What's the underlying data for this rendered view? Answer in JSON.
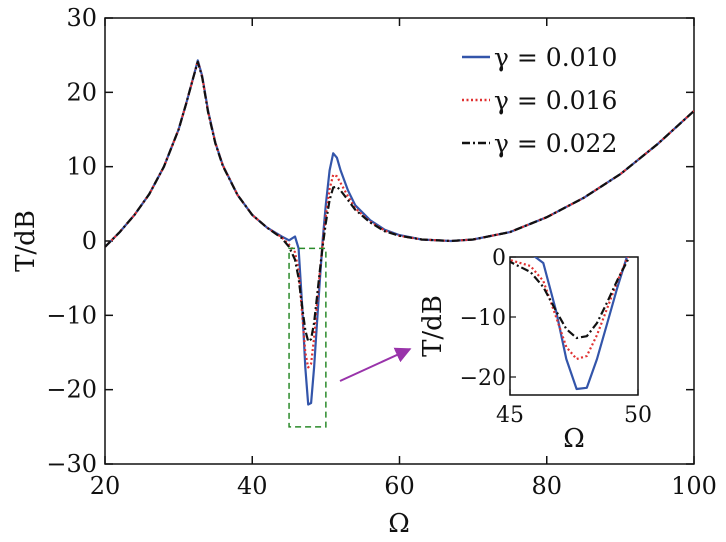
{
  "chart_data": {
    "type": "line",
    "xlabel": "Ω",
    "ylabel": "T/dB",
    "xlim": [
      20,
      100
    ],
    "ylim": [
      -30,
      30
    ],
    "xticks": [
      20,
      40,
      60,
      80,
      100
    ],
    "yticks": [
      -30,
      -20,
      -10,
      0,
      10,
      20,
      30
    ],
    "xtick_labels": [
      "20",
      "40",
      "60",
      "80",
      "100"
    ],
    "ytick_labels": [
      "−30",
      "−20",
      "−10",
      "0",
      "10",
      "20",
      "30"
    ],
    "grid": false,
    "legend_position": "top-right",
    "series": [
      {
        "name": "γ = 0.010",
        "color": "#3355aa",
        "style": "solid",
        "x": [
          20,
          22,
          24,
          26,
          28,
          30,
          31,
          32,
          32.6,
          33.2,
          34,
          35,
          36,
          38,
          40,
          42,
          44,
          45,
          45.8,
          46.3,
          46.8,
          47.2,
          47.6,
          48,
          48.4,
          48.8,
          49.2,
          49.6,
          50,
          50.5,
          51,
          51.5,
          52,
          53,
          54,
          56,
          58,
          60,
          63,
          67,
          70,
          75,
          80,
          85,
          90,
          95,
          100
        ],
        "y": [
          -0.8,
          1.2,
          3.5,
          6.3,
          10.0,
          15.0,
          18.4,
          22.0,
          24.3,
          22.2,
          17.5,
          13.2,
          10.2,
          6.2,
          3.5,
          1.8,
          0.6,
          0.1,
          0.6,
          -1.0,
          -9.0,
          -17.0,
          -22.0,
          -21.8,
          -17.0,
          -11.0,
          -5.0,
          0.5,
          5.0,
          9.5,
          11.8,
          11.2,
          9.5,
          6.8,
          4.8,
          2.8,
          1.5,
          0.8,
          0.2,
          0.0,
          0.2,
          1.2,
          3.2,
          5.8,
          9.0,
          13.0,
          17.5
        ]
      },
      {
        "name": "γ = 0.016",
        "color": "#e03030",
        "style": "dotted",
        "x": [
          20,
          22,
          24,
          26,
          28,
          30,
          31,
          32,
          32.6,
          33.2,
          34,
          35,
          36,
          38,
          40,
          42,
          44,
          45,
          45.8,
          46.3,
          46.8,
          47.2,
          47.6,
          48,
          48.4,
          48.8,
          49.2,
          49.6,
          50,
          50.5,
          51,
          51.5,
          52,
          53,
          54,
          56,
          58,
          60,
          63,
          67,
          70,
          75,
          80,
          85,
          90,
          95,
          100
        ],
        "y": [
          -0.8,
          1.2,
          3.5,
          6.3,
          10.0,
          15.0,
          18.4,
          22.0,
          24.2,
          22.1,
          17.4,
          13.2,
          10.2,
          6.2,
          3.5,
          1.8,
          0.5,
          -0.5,
          -1.5,
          -4.0,
          -10.0,
          -15.0,
          -17.0,
          -16.5,
          -13.0,
          -8.5,
          -4.0,
          0.0,
          3.5,
          7.0,
          8.9,
          8.7,
          7.8,
          6.0,
          4.4,
          2.6,
          1.4,
          0.7,
          0.2,
          0.0,
          0.2,
          1.2,
          3.2,
          5.8,
          9.0,
          13.0,
          17.5
        ]
      },
      {
        "name": "γ = 0.022",
        "color": "#111111",
        "style": "dashdot",
        "x": [
          20,
          22,
          24,
          26,
          28,
          30,
          31,
          32,
          32.6,
          33.2,
          34,
          35,
          36,
          38,
          40,
          42,
          44,
          45,
          45.8,
          46.3,
          46.8,
          47.2,
          47.6,
          48,
          48.4,
          48.8,
          49.2,
          49.6,
          50,
          50.5,
          51,
          51.5,
          52,
          53,
          54,
          56,
          58,
          60,
          63,
          67,
          70,
          75,
          80,
          85,
          90,
          95,
          100
        ],
        "y": [
          -0.8,
          1.2,
          3.5,
          6.3,
          10.0,
          15.0,
          18.4,
          22.0,
          24.1,
          22.0,
          17.3,
          13.1,
          10.1,
          6.2,
          3.5,
          1.8,
          0.4,
          -0.8,
          -2.5,
          -5.0,
          -9.0,
          -12.0,
          -13.5,
          -13.2,
          -11.0,
          -7.5,
          -3.8,
          -0.5,
          2.5,
          5.5,
          7.2,
          7.3,
          6.8,
          5.5,
          4.2,
          2.5,
          1.3,
          0.7,
          0.2,
          0.0,
          0.2,
          1.2,
          3.2,
          5.8,
          9.0,
          13.0,
          17.5
        ]
      }
    ],
    "inset": {
      "xlabel": "Ω",
      "ylabel": "T/dB",
      "xlim": [
        45,
        50
      ],
      "ylim": [
        -23,
        0
      ],
      "xticks": [
        45,
        50
      ],
      "yticks": [
        -20,
        -10,
        0
      ],
      "xtick_labels": [
        "45",
        "50"
      ],
      "ytick_labels": [
        "−20",
        "−10",
        "0"
      ]
    },
    "zoom_box": {
      "x_range": [
        45,
        50
      ],
      "y_range": [
        -25,
        -1
      ]
    }
  }
}
